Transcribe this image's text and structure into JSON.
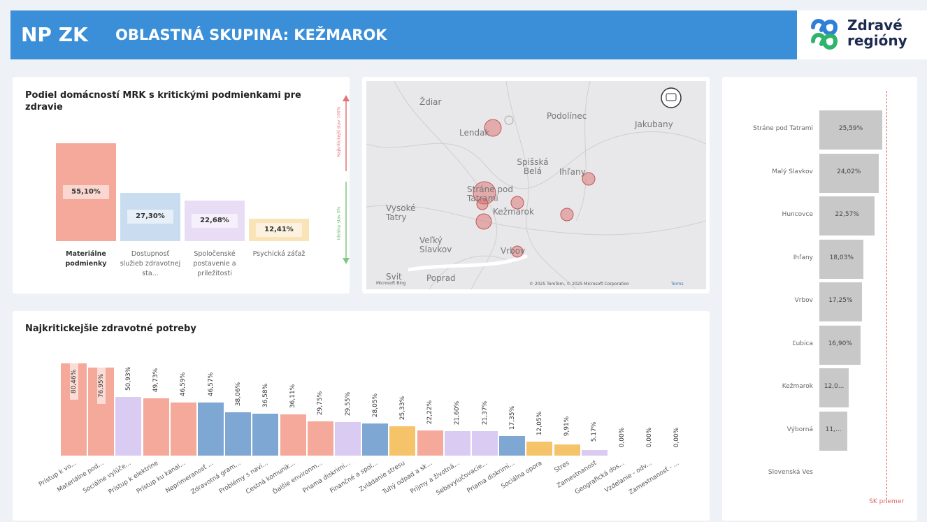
{
  "header": {
    "title": "NP ZK",
    "subtitle": "OBLASTNÁ SKUPINA: KEŽMAROK",
    "logo": [
      "Zdravé",
      "regióny"
    ]
  },
  "map": {
    "places": [
      "Ždiar",
      "Lendak",
      "Podolínec",
      "Jakubany",
      "Spišská Belá",
      "Ihľany",
      "Vysoké Tatry",
      "Stráne pod Tatrami",
      "Kežmarok",
      "Veľký Slavkov",
      "Vrbov",
      "Svit",
      "Poprad"
    ],
    "provider": "Microsoft Bing",
    "attribution": "© 2025 TomTom, © 2025 Microsoft Corporation",
    "terms": "Terms"
  },
  "chart_data": [
    {
      "type": "bar",
      "title": "Podiel domácností MRK s kritickými podmienkami pre zdravie",
      "categories": [
        "Materiálne podmienky",
        "Dostupnosť služieb zdravotnej sta...",
        "Spoločenské postavenie a príležitosti",
        "Psychická záťaž"
      ],
      "values": [
        55.1,
        27.3,
        22.68,
        12.41
      ],
      "value_labels": [
        "55,10%",
        "27,30%",
        "22,68%",
        "12,41%"
      ],
      "colors": [
        "#f4a99a",
        "#c9dcf0",
        "#e9ddf5",
        "#fbe3b8"
      ],
      "annotations": [
        "Najkritickejší stav 100%",
        "Ideálny stav 0%"
      ]
    },
    {
      "type": "bar",
      "title": "Najkritickejšie zdravotné potreby",
      "categories": [
        "Prístup k vo...",
        "Materiálne pod...",
        "Sociálne vylúče...",
        "Prístup k elektrine",
        "Prístup ku kanal...",
        "Neprimeranosť ...",
        "Zdravotná gram...",
        "Problémy s navi...",
        "Cestná komunik...",
        "Ďalšie environm...",
        "Priama diskrimi...",
        "Finančné a spol...",
        "Zvládanie stresu",
        "Tuhý odpad a sk...",
        "Príjmy a životná...",
        "Sebavylučovacie...",
        "Priama diskrimi...",
        "Sociálna opora",
        "Stres",
        "Zamestnanosť",
        "Geografická dos...",
        "Vzdelanie - odv...",
        "Zamestnanosť - ..."
      ],
      "values": [
        80.46,
        76.95,
        50.93,
        49.73,
        46.59,
        46.57,
        38.06,
        36.58,
        36.11,
        29.75,
        29.55,
        28.05,
        25.33,
        22.22,
        21.6,
        21.37,
        17.35,
        12.05,
        9.91,
        5.17,
        0,
        0,
        0
      ],
      "value_labels": [
        "80,46%",
        "76,95%",
        "50,93%",
        "49,73%",
        "46,59%",
        "46,57%",
        "38,06%",
        "36,58%",
        "36,11%",
        "29,75%",
        "29,55%",
        "28,05%",
        "25,33%",
        "22,22%",
        "21,60%",
        "21,37%",
        "17,35%",
        "12,05%",
        "9,91%",
        "5,17%",
        "0,00%",
        "0,00%",
        "0,00%"
      ],
      "colors": [
        "#f4a99a",
        "#f4a99a",
        "#d9cbf2",
        "#f4a99a",
        "#f4a99a",
        "#7ea7d4",
        "#7ea7d4",
        "#7ea7d4",
        "#f4a99a",
        "#f4a99a",
        "#d9cbf2",
        "#7ea7d4",
        "#f5c46a",
        "#f4a99a",
        "#d9cbf2",
        "#d9cbf2",
        "#7ea7d4",
        "#f5c46a",
        "#f5c46a",
        "#d9cbf2",
        "#d9cbf2",
        "#d9cbf2",
        "#d9cbf2"
      ]
    },
    {
      "type": "barh",
      "categories": [
        "Stráne pod Tatrami",
        "Malý Slavkov",
        "Huncovce",
        "Ihľany",
        "Vrbov",
        "Ľubica",
        "Kežmarok",
        "Výborná",
        "Slovenská Ves"
      ],
      "values": [
        25.59,
        24.02,
        22.57,
        18.03,
        17.25,
        16.9,
        12.0,
        11.4,
        null
      ],
      "value_labels": [
        "25,59%",
        "24,02%",
        "22,57%",
        "18,03%",
        "17,25%",
        "16,90%",
        "12,0...",
        "11,...",
        null
      ],
      "color": "#c8c8c8",
      "reference": {
        "label": "SK priemer",
        "value": 27.3,
        "color": "#e06060"
      }
    }
  ]
}
